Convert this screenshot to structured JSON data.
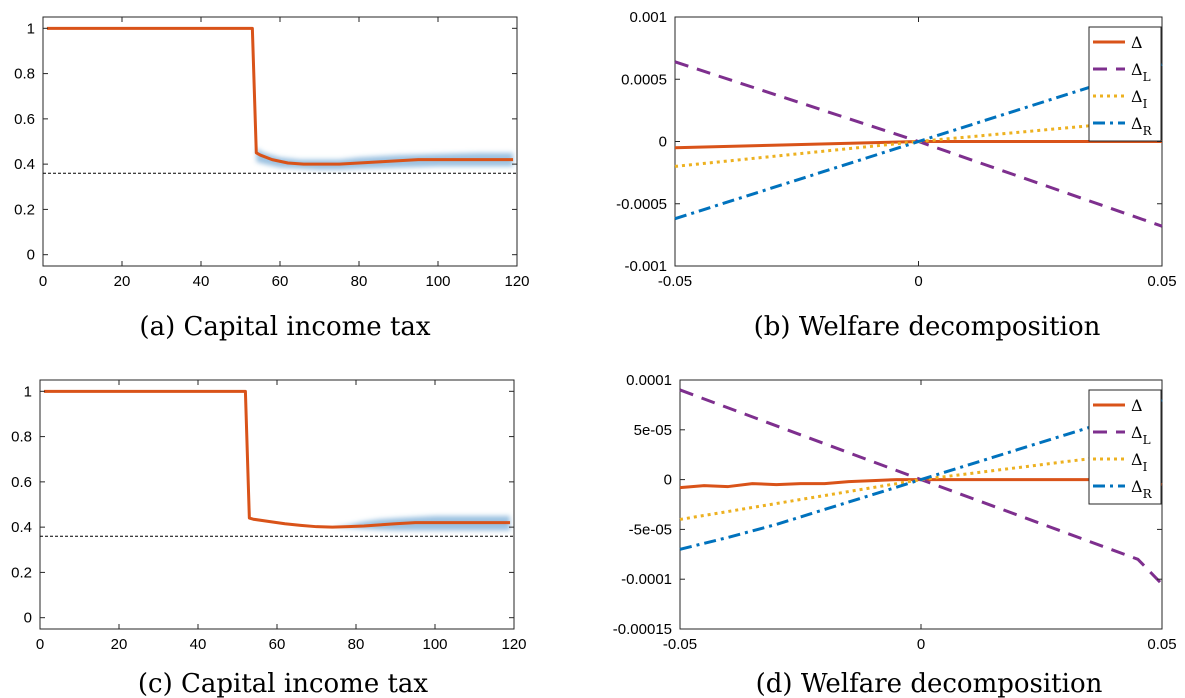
{
  "chart_data": [
    {
      "id": "a",
      "type": "line",
      "caption": "(a) Capital income tax",
      "xlim": [
        0,
        120
      ],
      "ylim": [
        -0.05,
        1.05
      ],
      "xticks": [
        0,
        20,
        40,
        60,
        80,
        100,
        120
      ],
      "yticks": [
        0,
        0.2,
        0.4,
        0.6,
        0.8,
        1
      ],
      "grid": false,
      "series": [
        {
          "color": "#D95319",
          "style": "solid",
          "x": [
            1,
            10,
            20,
            30,
            40,
            50,
            53,
            54,
            55,
            58,
            62,
            66,
            70,
            75,
            80,
            85,
            90,
            95,
            100,
            110,
            119
          ],
          "y": [
            1,
            1,
            1,
            1,
            1,
            1,
            1,
            0.45,
            0.44,
            0.42,
            0.405,
            0.4,
            0.4,
            0.4,
            0.405,
            0.41,
            0.415,
            0.42,
            0.42,
            0.42,
            0.42
          ]
        }
      ],
      "band": {
        "color": "#4a90c8",
        "x": [
          54,
          56,
          60,
          65,
          70,
          75,
          80,
          90,
          100,
          110,
          119
        ],
        "lower": [
          0.41,
          0.4,
          0.385,
          0.38,
          0.375,
          0.375,
          0.38,
          0.385,
          0.39,
          0.39,
          0.39
        ],
        "upper": [
          0.47,
          0.45,
          0.43,
          0.42,
          0.42,
          0.42,
          0.43,
          0.44,
          0.445,
          0.45,
          0.45
        ]
      },
      "reference_line": {
        "y": 0.36,
        "style": "dashed",
        "color": "#000000"
      }
    },
    {
      "id": "b",
      "type": "line",
      "caption": "(b) Welfare decomposition",
      "xlim": [
        -0.05,
        0.05
      ],
      "ylim": [
        -0.001,
        0.001
      ],
      "xticks": [
        "-0.05",
        "0",
        "0.05"
      ],
      "yticks": [
        "-0.001",
        "-0.0005",
        "0",
        "0.0005",
        "0.001"
      ],
      "legend_position": "top-right",
      "grid": false,
      "series": [
        {
          "name": "Δ",
          "color": "#D95319",
          "style": "solid",
          "x": [
            -0.05,
            -0.04,
            -0.03,
            -0.02,
            -0.01,
            0,
            0.01,
            0.02,
            0.03,
            0.04,
            0.05
          ],
          "y": [
            -5e-05,
            -4e-05,
            -3e-05,
            -2e-05,
            -1e-05,
            0,
            0,
            0,
            0,
            0,
            0
          ]
        },
        {
          "name": "ΔL",
          "color": "#7E2F8E",
          "style": "dashed",
          "x": [
            -0.05,
            0,
            0.05
          ],
          "y": [
            0.00064,
            0,
            -0.00068
          ]
        },
        {
          "name": "ΔI",
          "color": "#EDB120",
          "style": "dotted",
          "x": [
            -0.05,
            0,
            0.05
          ],
          "y": [
            -0.0002,
            0,
            0.00018
          ]
        },
        {
          "name": "ΔR",
          "color": "#0072BD",
          "style": "dashdot",
          "x": [
            -0.05,
            0,
            0.05
          ],
          "y": [
            -0.00062,
            0,
            0.00062
          ]
        }
      ]
    },
    {
      "id": "c",
      "type": "line",
      "caption": "(c) Capital income tax",
      "xlim": [
        0,
        120
      ],
      "ylim": [
        -0.05,
        1.05
      ],
      "xticks": [
        0,
        20,
        40,
        60,
        80,
        100,
        120
      ],
      "yticks": [
        0,
        0.2,
        0.4,
        0.6,
        0.8,
        1
      ],
      "grid": false,
      "series": [
        {
          "color": "#D95319",
          "style": "solid",
          "x": [
            1,
            10,
            20,
            30,
            40,
            50,
            52,
            53,
            54,
            58,
            62,
            66,
            70,
            74,
            78,
            82,
            86,
            90,
            95,
            100,
            110,
            119
          ],
          "y": [
            1,
            1,
            1,
            1,
            1,
            1,
            1,
            0.44,
            0.435,
            0.425,
            0.415,
            0.408,
            0.402,
            0.4,
            0.402,
            0.405,
            0.41,
            0.415,
            0.42,
            0.42,
            0.42,
            0.42
          ]
        }
      ],
      "band": {
        "color": "#4a90c8",
        "x": [
          74,
          78,
          82,
          86,
          90,
          95,
          100,
          110,
          119
        ],
        "lower": [
          0.4,
          0.397,
          0.392,
          0.388,
          0.385,
          0.385,
          0.385,
          0.385,
          0.385
        ],
        "upper": [
          0.4,
          0.41,
          0.425,
          0.435,
          0.44,
          0.445,
          0.45,
          0.45,
          0.45
        ]
      },
      "reference_line": {
        "y": 0.36,
        "style": "dashed",
        "color": "#000000"
      }
    },
    {
      "id": "d",
      "type": "line",
      "caption": "(d) Welfare decomposition",
      "xlim": [
        -0.05,
        0.05
      ],
      "ylim": [
        -0.00015,
        0.0001
      ],
      "xticks": [
        "-0.05",
        "0",
        "0.05"
      ],
      "yticks": [
        "-0.00015",
        "-0.0001",
        "-5e-05",
        "0",
        "5e-05",
        "0.0001"
      ],
      "legend_position": "top-right",
      "grid": false,
      "series": [
        {
          "name": "Δ",
          "color": "#D95319",
          "style": "solid",
          "x": [
            -0.05,
            -0.045,
            -0.04,
            -0.035,
            -0.03,
            -0.025,
            -0.02,
            -0.015,
            -0.01,
            -0.005,
            0,
            0.01,
            0.02,
            0.03,
            0.04,
            0.045,
            0.05
          ],
          "y": [
            -8e-06,
            -6e-06,
            -7e-06,
            -4e-06,
            -5e-06,
            -4e-06,
            -4e-06,
            -2e-06,
            -1e-06,
            0,
            0,
            0,
            0,
            0,
            0,
            -1e-06,
            -5e-06
          ]
        },
        {
          "name": "ΔL",
          "color": "#7E2F8E",
          "style": "dashed",
          "x": [
            -0.05,
            0,
            0.045,
            0.05
          ],
          "y": [
            9e-05,
            0,
            -8e-05,
            -0.000105
          ]
        },
        {
          "name": "ΔI",
          "color": "#EDB120",
          "style": "dotted",
          "x": [
            -0.05,
            0,
            0.05
          ],
          "y": [
            -4e-05,
            0,
            3e-05
          ]
        },
        {
          "name": "ΔR",
          "color": "#0072BD",
          "style": "dashdot",
          "x": [
            -0.05,
            -0.04,
            -0.03,
            -0.02,
            -0.01,
            0,
            0.01,
            0.02,
            0.03,
            0.04,
            0.05
          ],
          "y": [
            -7e-05,
            -5.8e-05,
            -4.5e-05,
            -3e-05,
            -1.5e-05,
            0,
            1.5e-05,
            3e-05,
            4.5e-05,
            6e-05,
            8e-05
          ]
        }
      ]
    }
  ]
}
